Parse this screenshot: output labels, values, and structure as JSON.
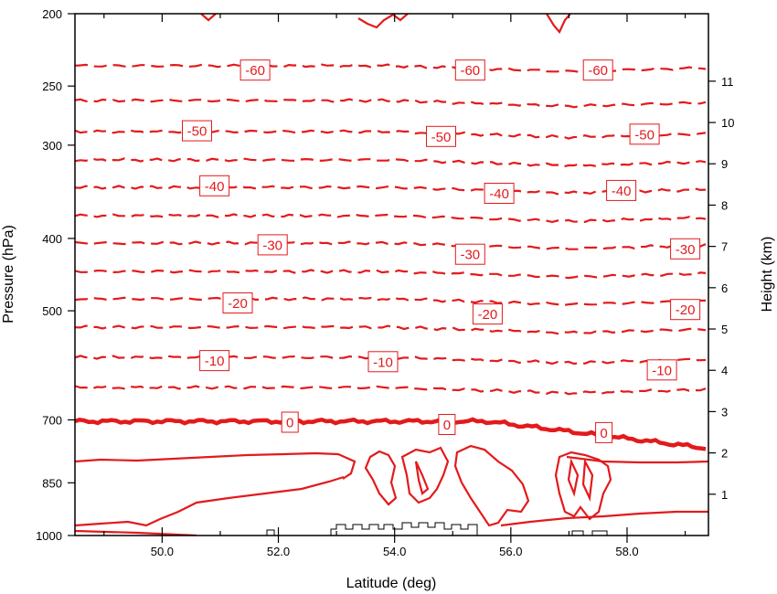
{
  "chart_data": {
    "type": "contour",
    "xlabel": "Latitude (deg)",
    "ylabel_left": "Pressure (hPa)",
    "ylabel_right": "Height (km)",
    "xlim": [
      48.5,
      59.4
    ],
    "ylim_pressure": [
      1000,
      200
    ],
    "pressure_scale": "log",
    "x_ticks": [
      "50.0",
      "52.0",
      "54.0",
      "56.0",
      "58.0"
    ],
    "y_ticks_pressure": [
      "200",
      "250",
      "300",
      "400",
      "500",
      "700",
      "850",
      "1000"
    ],
    "y_ticks_height": [
      "1",
      "2",
      "3",
      "4",
      "5",
      "6",
      "7",
      "8",
      "9",
      "10",
      "11"
    ],
    "colors": {
      "contour": "#e31a1c",
      "terrain": "#000000"
    },
    "negative_style": "dashed",
    "zero_style": "thick solid",
    "positive_style": "solid",
    "contour_interval": 5,
    "contour_labels": [
      {
        "text": "-60",
        "lat": 51.6,
        "p": 238
      },
      {
        "text": "-60",
        "lat": 55.3,
        "p": 238
      },
      {
        "text": "-60",
        "lat": 57.5,
        "p": 238
      },
      {
        "text": "-50",
        "lat": 50.6,
        "p": 287
      },
      {
        "text": "-50",
        "lat": 54.8,
        "p": 292
      },
      {
        "text": "-50",
        "lat": 58.3,
        "p": 290
      },
      {
        "text": "-40",
        "lat": 50.9,
        "p": 340
      },
      {
        "text": "-40",
        "lat": 55.8,
        "p": 348
      },
      {
        "text": "-40",
        "lat": 57.9,
        "p": 345
      },
      {
        "text": "-30",
        "lat": 51.9,
        "p": 408
      },
      {
        "text": "-30",
        "lat": 55.3,
        "p": 420
      },
      {
        "text": "-30",
        "lat": 59.0,
        "p": 413
      },
      {
        "text": "-20",
        "lat": 51.3,
        "p": 488
      },
      {
        "text": "-20",
        "lat": 55.6,
        "p": 505
      },
      {
        "text": "-20",
        "lat": 59.0,
        "p": 498
      },
      {
        "text": "-10",
        "lat": 50.9,
        "p": 583
      },
      {
        "text": "-10",
        "lat": 53.8,
        "p": 585
      },
      {
        "text": "-10",
        "lat": 58.6,
        "p": 600
      },
      {
        "text": "0",
        "lat": 52.2,
        "p": 705
      },
      {
        "text": "0",
        "lat": 54.9,
        "p": 710
      },
      {
        "text": "0",
        "lat": 57.6,
        "p": 728
      }
    ]
  }
}
